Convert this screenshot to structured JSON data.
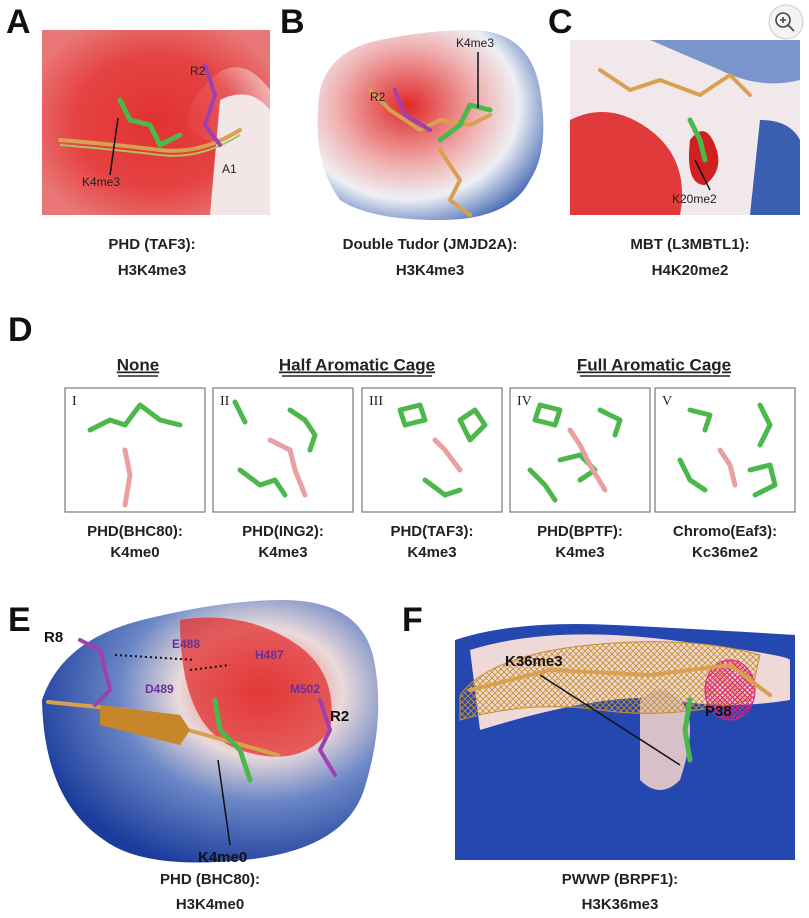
{
  "panels": [
    {
      "letter": "A",
      "labels": [
        "R2",
        "K4me3",
        "A1"
      ],
      "caption": [
        "PHD (TAF3):",
        "H3K4me3"
      ]
    },
    {
      "letter": "B",
      "labels": [
        "K4me3",
        "R2"
      ],
      "caption": [
        "Double Tudor (JMJD2A):",
        "H3K4me3"
      ]
    },
    {
      "letter": "C",
      "labels": [
        "K20me2"
      ],
      "caption": [
        "MBT (L3MBTL1):",
        "H4K20me2"
      ]
    },
    {
      "letter": "D",
      "groups": [
        "None",
        "Half Aromatic Cage",
        "Full Aromatic Cage"
      ],
      "boxes": [
        {
          "numeral": "I",
          "caption": [
            "PHD(BHC80):",
            "K4me0"
          ]
        },
        {
          "numeral": "II",
          "caption": [
            "PHD(ING2):",
            "K4me3"
          ]
        },
        {
          "numeral": "III",
          "caption": [
            "PHD(TAF3):",
            "K4me3"
          ]
        },
        {
          "numeral": "IV",
          "caption": [
            "PHD(BPTF):",
            "K4me3"
          ]
        },
        {
          "numeral": "V",
          "caption": [
            "Chromo(Eaf3):",
            "Kc36me2"
          ]
        }
      ]
    },
    {
      "letter": "E",
      "labels": [
        "R8",
        "E488",
        "H487",
        "D489",
        "M502",
        "R2",
        "K4me0"
      ],
      "caption": [
        "PHD (BHC80):",
        "H3K4me0"
      ]
    },
    {
      "letter": "F",
      "labels": [
        "K36me3",
        "P38"
      ],
      "caption": [
        "PWWP (BRPF1):",
        "H3K36me3"
      ]
    }
  ]
}
